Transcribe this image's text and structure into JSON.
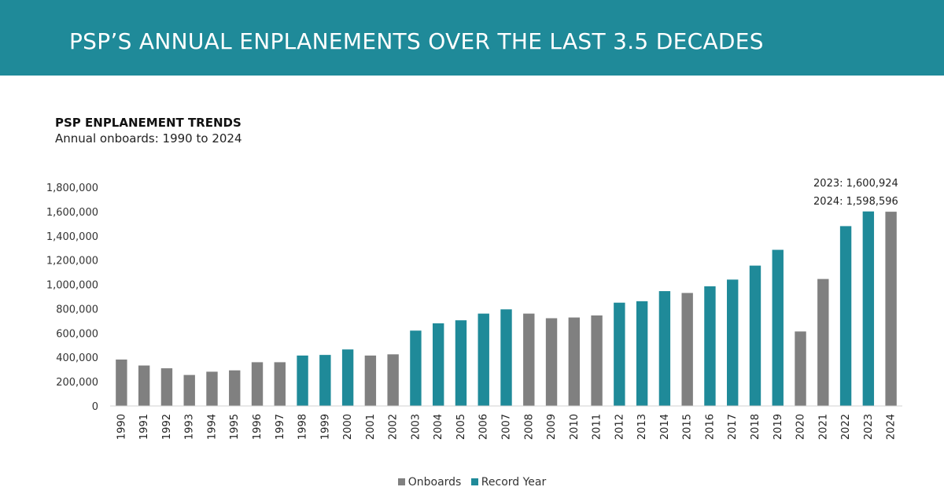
{
  "header": {
    "title": "PSP’S ANNUAL ENPLANEMENTS OVER THE LAST 3.5 DECADES"
  },
  "colors": {
    "banner": "#1f8a99",
    "onboards": "#808080",
    "record_year": "#1f8a99"
  },
  "chart_data": {
    "type": "bar",
    "title": "PSP ENPLANEMENT TRENDS",
    "subtitle": "Annual onboards: 1990 to 2024",
    "xlabel": "",
    "ylabel": "",
    "ylim": [
      0,
      1800000
    ],
    "yticks": [
      0,
      200000,
      400000,
      600000,
      800000,
      1000000,
      1200000,
      1400000,
      1600000,
      1800000
    ],
    "ytick_labels": [
      "0",
      "200,000",
      "400,000",
      "600,000",
      "800,000",
      "1,000,000",
      "1,200,000",
      "1,400,000",
      "1,600,000",
      "1,800,000"
    ],
    "grid": false,
    "legend_position": "bottom",
    "categories": [
      "1990",
      "1991",
      "1992",
      "1993",
      "1994",
      "1995",
      "1996",
      "1997",
      "1998",
      "1999",
      "2000",
      "2001",
      "2002",
      "2003",
      "2004",
      "2005",
      "2006",
      "2007",
      "2008",
      "2009",
      "2010",
      "2011",
      "2012",
      "2013",
      "2014",
      "2015",
      "2016",
      "2017",
      "2018",
      "2019",
      "2020",
      "2021",
      "2022",
      "2023",
      "2024"
    ],
    "values": [
      382000,
      333000,
      310000,
      255000,
      282000,
      293000,
      360000,
      360000,
      415000,
      420000,
      465000,
      415000,
      425000,
      620000,
      680000,
      705000,
      760000,
      795000,
      760000,
      722000,
      728000,
      745000,
      850000,
      862000,
      945000,
      930000,
      985000,
      1040000,
      1155000,
      1285000,
      613000,
      1045000,
      1480000,
      1600924,
      1598596
    ],
    "series_type": [
      "Onboards",
      "Onboards",
      "Onboards",
      "Onboards",
      "Onboards",
      "Onboards",
      "Onboards",
      "Onboards",
      "Record Year",
      "Record Year",
      "Record Year",
      "Onboards",
      "Onboards",
      "Record Year",
      "Record Year",
      "Record Year",
      "Record Year",
      "Record Year",
      "Onboards",
      "Onboards",
      "Onboards",
      "Onboards",
      "Record Year",
      "Record Year",
      "Record Year",
      "Onboards",
      "Record Year",
      "Record Year",
      "Record Year",
      "Record Year",
      "Onboards",
      "Onboards",
      "Record Year",
      "Record Year",
      "Onboards"
    ],
    "legend": [
      "Onboards",
      "Record Year"
    ],
    "annotations": [
      "2023: 1,600,924",
      "2024: 1,598,596"
    ]
  }
}
